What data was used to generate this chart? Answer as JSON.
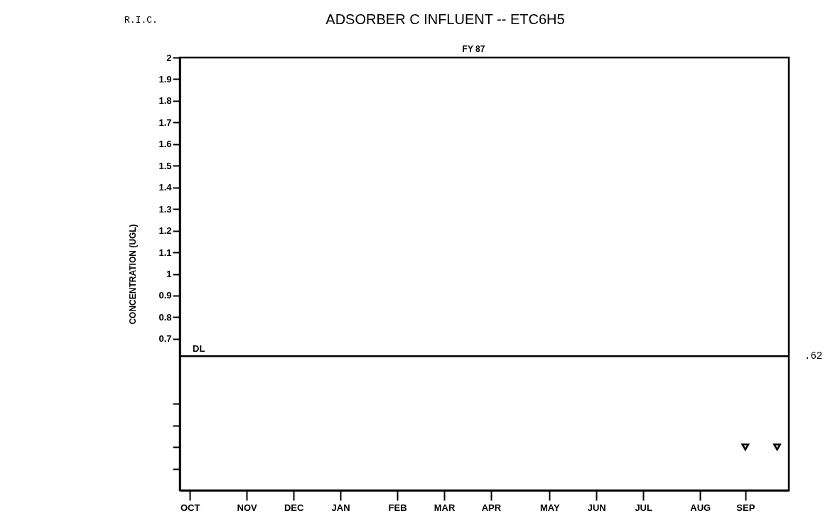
{
  "chart_data": {
    "type": "scatter",
    "title": "ADSORBER C INFLUENT -- ETC6H5",
    "subtitle": "FY 87",
    "ylabel": "CONCENTRATION  (UGL)",
    "x": [
      "1987-09-04",
      "1987-09-23"
    ],
    "series": [
      {
        "color": "#000000",
        "values": [
          0.2,
          0.2
        ]
      }
    ],
    "marker": "triangle",
    "grid": false,
    "legend": false,
    "xlim": [
      "1986-10-01",
      "1987-09-30"
    ],
    "xticks": [
      {
        "value": "1986-10-07",
        "label": "OCT"
      },
      {
        "value": "1986-11-10",
        "label": "NOV"
      },
      {
        "value": "1986-12-08",
        "label": "DEC"
      },
      {
        "value": "1987-01-05",
        "label": "JAN"
      },
      {
        "value": "1987-02-08",
        "label": "FEB"
      },
      {
        "value": "1987-03-08",
        "label": "MAR"
      },
      {
        "value": "1987-04-05",
        "label": "APR"
      },
      {
        "value": "1987-05-10",
        "label": "MAY"
      },
      {
        "value": "1987-06-07",
        "label": "JUN"
      },
      {
        "value": "1987-07-05",
        "label": "JUL"
      },
      {
        "value": "1987-08-08",
        "label": "AUG"
      },
      {
        "value": "1987-09-04",
        "label": "SEP"
      }
    ],
    "ylim": [
      0,
      2
    ],
    "yticks": [
      {
        "value": 0.1,
        "label": null
      },
      {
        "value": 0.2,
        "label": null
      },
      {
        "value": 0.3,
        "label": null
      },
      {
        "value": 0.4,
        "label": null
      },
      0.7,
      0.8,
      0.9,
      1,
      1.1,
      1.2,
      1.3,
      1.4,
      1.5,
      1.6,
      1.7,
      1.8,
      1.9,
      2
    ],
    "ref_lines": [
      {
        "axis": "y",
        "value": 0.62,
        "label": "DL",
        "color": "#000000"
      }
    ],
    "annotations": [
      "R.I.C.",
      ".62"
    ]
  }
}
